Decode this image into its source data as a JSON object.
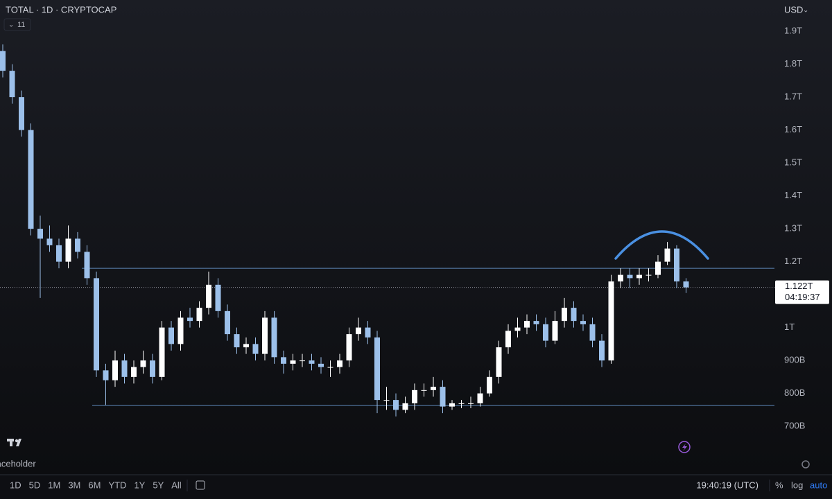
{
  "chart_data": {
    "type": "candlestick",
    "title": "TOTAL · 1D · CRYPTOCAP",
    "indicator_count": "11",
    "currency": "USD",
    "categories": [
      "Jun_placeholder"
    ],
    "open": [
      1840,
      1780,
      1700,
      1600,
      1300,
      1270,
      1250,
      1200,
      1270,
      1230,
      1150,
      870,
      840,
      900,
      850,
      880,
      900,
      850,
      1000,
      950,
      1030,
      1020,
      1060,
      1130,
      1050,
      980,
      940,
      950,
      920,
      1030,
      910,
      890,
      900,
      900,
      890,
      880,
      880,
      900,
      980,
      1000,
      970,
      780,
      780,
      750,
      770,
      810,
      810,
      820,
      760,
      770,
      770,
      770,
      800,
      850,
      940,
      990,
      1000,
      1020,
      1010,
      960,
      1020,
      1060,
      1020,
      1010,
      960,
      900,
      1140,
      1160,
      1150,
      1160,
      1160,
      1200,
      1240,
      1140,
      null,
      null,
      null,
      null,
      null,
      null,
      null
    ],
    "high": [
      1860,
      1800,
      1720,
      1620,
      1340,
      1310,
      1270,
      1310,
      1290,
      1250,
      1170,
      890,
      930,
      920,
      900,
      930,
      920,
      1020,
      1020,
      1050,
      1060,
      1080,
      1170,
      1150,
      1070,
      1000,
      970,
      970,
      1050,
      1050,
      930,
      920,
      920,
      920,
      910,
      900,
      920,
      1000,
      1030,
      1020,
      990,
      820,
      800,
      790,
      830,
      830,
      850,
      840,
      780,
      780,
      790,
      820,
      870,
      960,
      1010,
      1030,
      1040,
      1040,
      1030,
      1050,
      1090,
      1080,
      1040,
      1030,
      980,
      1160,
      1180,
      1180,
      1180,
      1180,
      1220,
      1260,
      1250,
      1150,
      null,
      null,
      null,
      null,
      null,
      null,
      null
    ],
    "low": [
      1760,
      1680,
      1580,
      1280,
      1090,
      1230,
      1180,
      1180,
      1210,
      1130,
      850,
      765,
      820,
      830,
      830,
      860,
      830,
      840,
      930,
      930,
      1000,
      1000,
      1040,
      1030,
      960,
      920,
      920,
      900,
      900,
      890,
      860,
      870,
      880,
      870,
      860,
      850,
      860,
      880,
      960,
      950,
      740,
      750,
      730,
      740,
      750,
      790,
      790,
      740,
      750,
      755,
      755,
      760,
      790,
      830,
      920,
      970,
      980,
      990,
      940,
      950,
      1000,
      1000,
      990,
      940,
      880,
      890,
      1120,
      1120,
      1130,
      1140,
      1150,
      1190,
      1120,
      1105,
      null,
      null,
      null,
      null,
      null,
      null,
      null
    ],
    "close": [
      1780,
      1700,
      1600,
      1300,
      1270,
      1250,
      1200,
      1270,
      1230,
      1150,
      870,
      840,
      900,
      850,
      880,
      900,
      850,
      1000,
      950,
      1030,
      1020,
      1060,
      1130,
      1050,
      980,
      940,
      950,
      920,
      1030,
      910,
      890,
      900,
      900,
      890,
      880,
      880,
      900,
      980,
      1000,
      970,
      780,
      780,
      750,
      770,
      810,
      810,
      820,
      760,
      770,
      770,
      770,
      800,
      850,
      940,
      990,
      1000,
      1020,
      1010,
      960,
      1020,
      1060,
      1020,
      1010,
      960,
      900,
      1140,
      1160,
      1150,
      1160,
      1160,
      1200,
      1240,
      1140,
      1122,
      null,
      null,
      null,
      null,
      null,
      null,
      null
    ],
    "up_color": "#ffffff",
    "down_color": "#9cc0ea",
    "levels": [
      1180,
      763
    ],
    "level_color": "#5d86b8",
    "last_price": {
      "value": 1122,
      "label": "1.122T"
    },
    "countdown": "04:19:37",
    "ylim": [
      616,
      1995
    ],
    "yticks": [
      {
        "value": 1900,
        "label": "1.9T"
      },
      {
        "value": 1800,
        "label": "1.8T"
      },
      {
        "value": 1700,
        "label": "1.7T"
      },
      {
        "value": 1600,
        "label": "1.6T"
      },
      {
        "value": 1500,
        "label": "1.5T"
      },
      {
        "value": 1400,
        "label": "1.4T"
      },
      {
        "value": 1300,
        "label": "1.3T"
      },
      {
        "value": 1200,
        "label": "1.2T"
      },
      {
        "value": 1000,
        "label": "1T"
      },
      {
        "value": 900,
        "label": "900B"
      },
      {
        "value": 800,
        "label": "800B"
      },
      {
        "value": 700,
        "label": "700B"
      }
    ],
    "grid": false
  },
  "toolbar": {
    "ranges": [
      "1D",
      "5D",
      "1M",
      "3M",
      "6M",
      "YTD",
      "1Y",
      "5Y",
      "All"
    ],
    "clock": "19:40:19 (UTC)",
    "percent": "%",
    "log": "log",
    "auto": "auto"
  }
}
